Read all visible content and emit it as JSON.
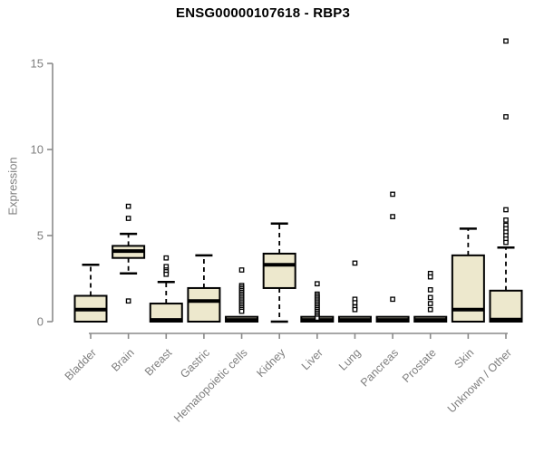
{
  "title": "ENSG00000107618 - RBP3",
  "ylabel": "Expression",
  "colors": {
    "box_fill": "#EDE8CD",
    "box_stroke": "#000000",
    "axis_color": "#8A8A8A",
    "tick_label_color": "#7F7F7F",
    "title_color": "#000000",
    "outlier_fill": "#FFFFFF"
  },
  "chart_data": {
    "type": "boxplot",
    "title": "ENSG00000107618 - RBP3",
    "xlabel": "",
    "ylabel": "Expression",
    "yticks": [
      0,
      5,
      10,
      15
    ],
    "ylim": [
      0,
      16.8
    ],
    "grid": false,
    "legend": false,
    "categories": [
      "Bladder",
      "Brain",
      "Breast",
      "Gastric",
      "Hematopoietic cells",
      "Kidney",
      "Liver",
      "Lung",
      "Pancreas",
      "Prostate",
      "Skin",
      "Unknown / Other"
    ],
    "series": [
      {
        "name": "Bladder",
        "whisker_low": 0,
        "q1": 0,
        "median": 0.7,
        "q3": 1.5,
        "whisker_high": 3.3,
        "outliers": []
      },
      {
        "name": "Brain",
        "whisker_low": 2.8,
        "q1": 3.7,
        "median": 4.1,
        "q3": 4.4,
        "whisker_high": 5.1,
        "outliers": [
          6.7,
          6.0,
          1.2
        ]
      },
      {
        "name": "Breast",
        "whisker_low": 0,
        "q1": 0,
        "median": 0.1,
        "q3": 1.05,
        "whisker_high": 2.3,
        "outliers": [
          3.7,
          3.2,
          3.0,
          2.9,
          2.75
        ]
      },
      {
        "name": "Gastric",
        "whisker_low": 0,
        "q1": 0,
        "median": 1.2,
        "q3": 1.95,
        "whisker_high": 3.85,
        "outliers": []
      },
      {
        "name": "Hematopoietic cells",
        "whisker_low": 0,
        "q1": 0,
        "median": 0.1,
        "q3": 0.28,
        "whisker_high": 0.28,
        "outliers": [
          3.0,
          2.1,
          2.0,
          1.9,
          1.8,
          1.7,
          1.6,
          1.5,
          1.4,
          1.3,
          1.2,
          1.1,
          1.0,
          0.9,
          0.8,
          0.7,
          0.6
        ]
      },
      {
        "name": "Kidney",
        "whisker_low": 0,
        "q1": 1.95,
        "median": 3.3,
        "q3": 3.95,
        "whisker_high": 5.7,
        "outliers": []
      },
      {
        "name": "Liver",
        "whisker_low": 0,
        "q1": 0,
        "median": 0.1,
        "q3": 0.28,
        "whisker_high": 0.28,
        "outliers": [
          2.2,
          1.6,
          1.5,
          1.4,
          1.3,
          1.2,
          1.1,
          1.0,
          0.9,
          0.8,
          0.7,
          0.6,
          0.5,
          0.4,
          0.3,
          0.2
        ]
      },
      {
        "name": "Lung",
        "whisker_low": 0,
        "q1": 0,
        "median": 0.1,
        "q3": 0.28,
        "whisker_high": 0.28,
        "outliers": [
          3.4,
          1.3,
          1.1,
          0.85,
          0.7
        ]
      },
      {
        "name": "Pancreas",
        "whisker_low": 0,
        "q1": 0,
        "median": 0.1,
        "q3": 0.28,
        "whisker_high": 0.28,
        "outliers": [
          7.4,
          6.1,
          1.3
        ]
      },
      {
        "name": "Prostate",
        "whisker_low": 0,
        "q1": 0,
        "median": 0.1,
        "q3": 0.28,
        "whisker_high": 0.28,
        "outliers": [
          2.8,
          2.6,
          1.85,
          1.4,
          1.05,
          0.7
        ]
      },
      {
        "name": "Skin",
        "whisker_low": 0,
        "q1": 0,
        "median": 0.7,
        "q3": 3.85,
        "whisker_high": 5.4,
        "outliers": []
      },
      {
        "name": "Unknown / Other",
        "whisker_low": 0,
        "q1": 0,
        "median": 0.12,
        "q3": 1.8,
        "whisker_high": 4.3,
        "outliers": [
          16.3,
          11.9,
          6.5,
          5.9,
          5.6,
          5.4,
          5.2,
          5.0,
          4.8,
          4.6
        ]
      }
    ]
  }
}
